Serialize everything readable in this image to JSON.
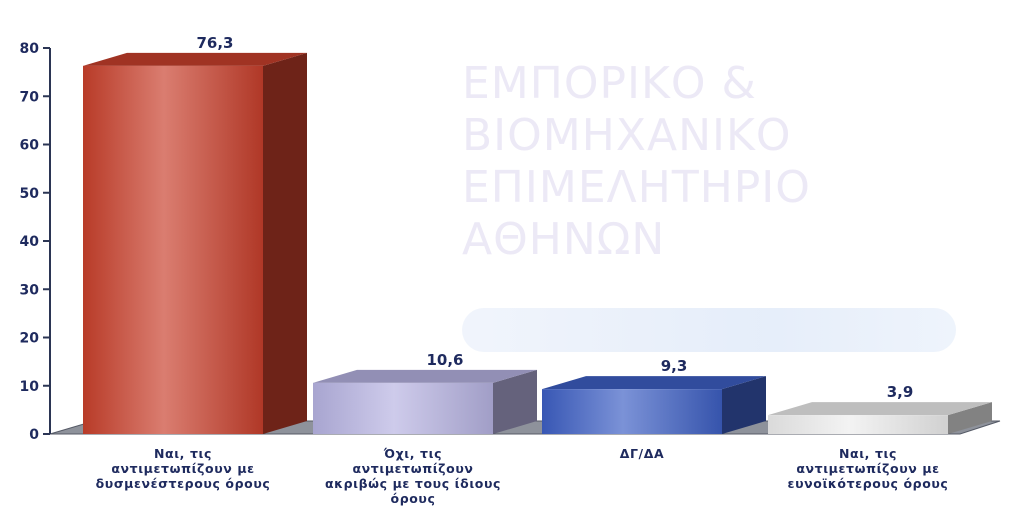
{
  "watermark": {
    "line1": "ΕΜΠΟΡΙΚΟ &",
    "line2": "ΒΙΟΜΗΧΑΝΙΚΟ",
    "line3": "ΕΠΙΜΕΛΗΤΗΡΙΟ",
    "line4": "ΑΘΗΝΩΝ"
  },
  "chart_data": {
    "type": "bar",
    "categories": [
      "Ναι, τις αντιμετωπίζουν με δυσμενέστερους όρους",
      "Όχι, τις αντιμετωπίζουν ακριβώς με τους ίδιους όρους",
      "ΔΓ/ΔΑ",
      "Ναι, τις αντιμετωπίζουν με ευνοϊκότερους όρους"
    ],
    "category_lines": [
      [
        "Ναι, τις",
        "αντιμετωπίζουν με",
        "δυσμενέστερους όρους"
      ],
      [
        "Όχι, τις",
        "αντιμετωπίζουν",
        "ακριβώς με τους ίδιους",
        "όρους"
      ],
      [
        "ΔΓ/ΔΑ"
      ],
      [
        "Ναι, τις",
        "αντιμετωπίζουν με",
        "ευνοϊκότερους όρους"
      ]
    ],
    "values": [
      76.3,
      10.6,
      9.3,
      3.9
    ],
    "value_labels": [
      "76,3",
      "10,6",
      "9,3",
      "3,9"
    ],
    "colors": [
      "#c8402c",
      "#b7b3e2",
      "#3d5fc4",
      "#ededed"
    ],
    "ylim": [
      0,
      80
    ],
    "yticks": [
      0,
      10,
      20,
      30,
      40,
      50,
      60,
      70,
      80
    ],
    "grid": false,
    "style": "3d"
  }
}
